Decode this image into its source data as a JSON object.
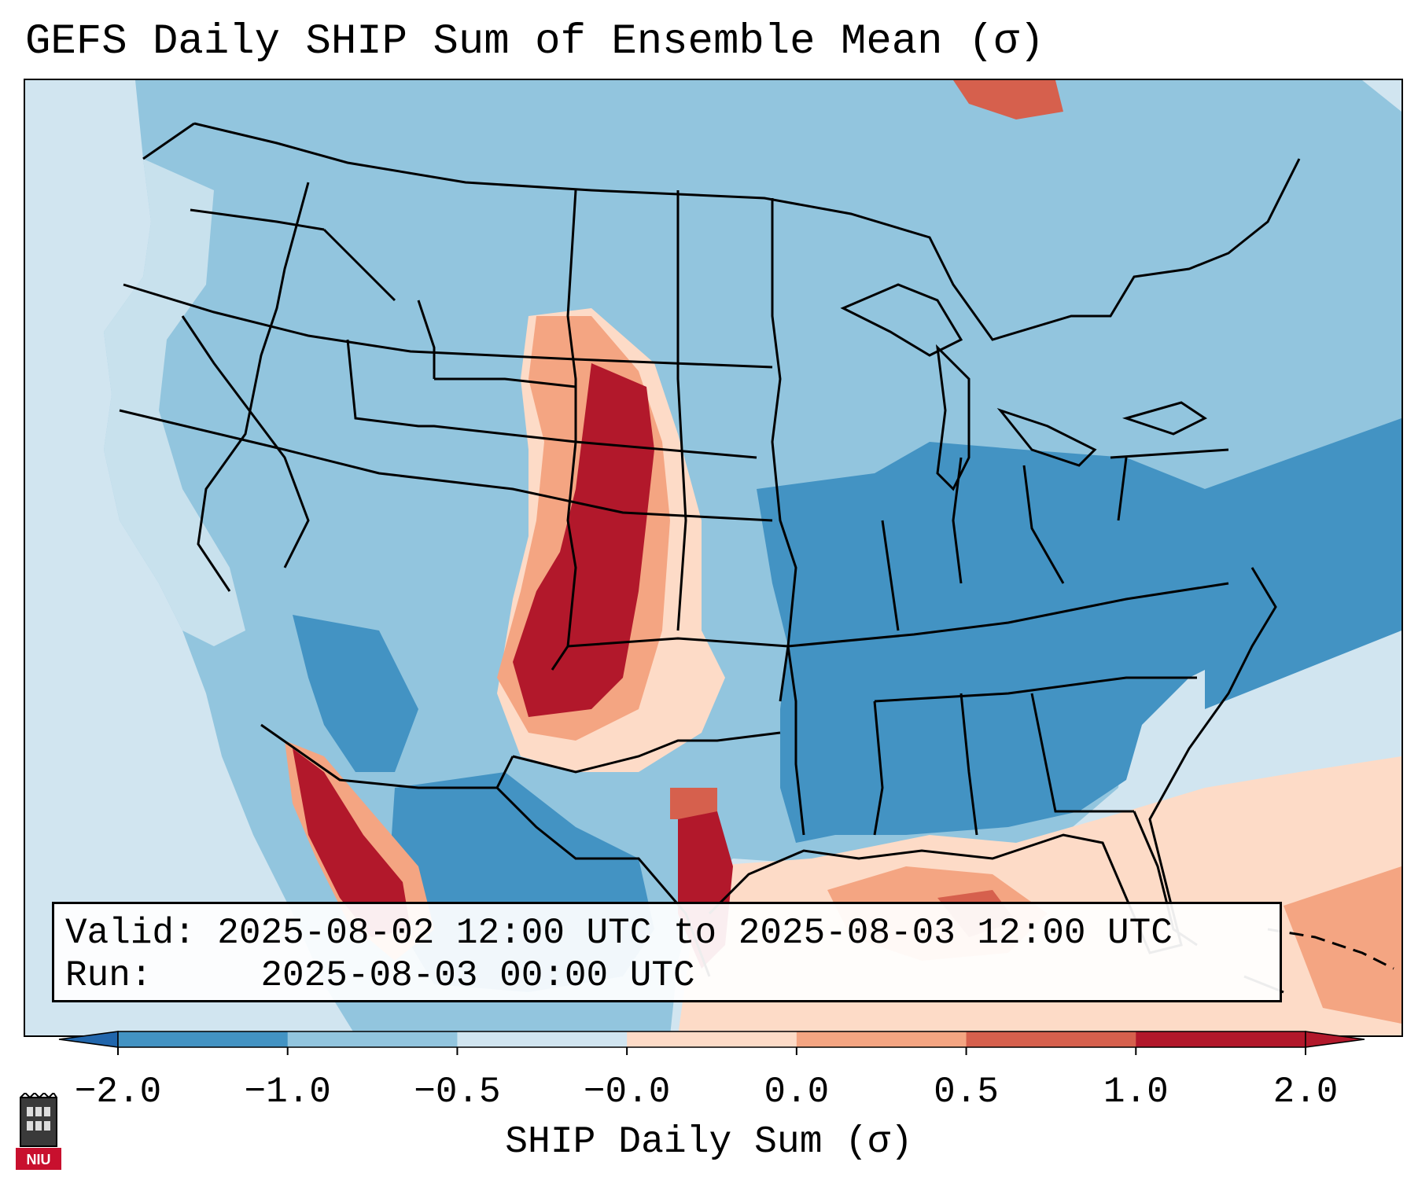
{
  "title": "GEFS Daily SHIP Sum of Ensemble Mean (σ)",
  "info": {
    "valid_label": "Valid:",
    "valid_value": "2025-08-02 12:00 UTC to 2025-08-03 12:00 UTC",
    "run_label": "Run:",
    "run_value": "2025-08-03 00:00 UTC"
  },
  "colorbar": {
    "label": "SHIP Daily Sum (σ)",
    "ticks": [
      "−2.0",
      "−1.0",
      "−0.5",
      "−0.0",
      "0.0",
      "0.5",
      "1.0",
      "2.0"
    ],
    "colors": [
      "#4393c3",
      "#92c5de",
      "#d1e5f0",
      "#fddbc7",
      "#f4a582",
      "#d6604d",
      "#b2182b"
    ],
    "under_color": "#2166ac",
    "over_color": "#b2182b"
  },
  "colors": {
    "ocean": "#d1e5f0",
    "borders": "#000000"
  },
  "logo": {
    "text": "NIU",
    "name": "university-logo"
  }
}
